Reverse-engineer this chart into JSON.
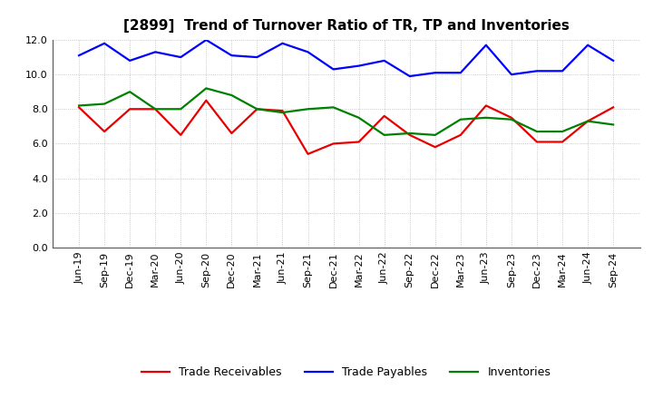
{
  "title": "[2899]  Trend of Turnover Ratio of TR, TP and Inventories",
  "x_labels": [
    "Jun-19",
    "Sep-19",
    "Dec-19",
    "Mar-20",
    "Jun-20",
    "Sep-20",
    "Dec-20",
    "Mar-21",
    "Jun-21",
    "Sep-21",
    "Dec-21",
    "Mar-22",
    "Jun-22",
    "Sep-22",
    "Dec-22",
    "Mar-23",
    "Jun-23",
    "Sep-23",
    "Dec-23",
    "Mar-24",
    "Jun-24",
    "Sep-24"
  ],
  "trade_receivables": [
    8.1,
    6.7,
    8.0,
    8.0,
    6.5,
    8.5,
    6.6,
    8.0,
    7.9,
    5.4,
    6.0,
    6.1,
    7.6,
    6.5,
    5.8,
    6.5,
    8.2,
    7.5,
    6.1,
    6.1,
    7.3,
    8.1
  ],
  "trade_payables": [
    11.1,
    11.8,
    10.8,
    11.3,
    11.0,
    12.0,
    11.1,
    11.0,
    11.8,
    11.3,
    10.3,
    10.5,
    10.8,
    9.9,
    10.1,
    10.1,
    11.7,
    10.0,
    10.2,
    10.2,
    11.7,
    10.8
  ],
  "inventories": [
    8.2,
    8.3,
    9.0,
    8.0,
    8.0,
    9.2,
    8.8,
    8.0,
    7.8,
    8.0,
    8.1,
    7.5,
    6.5,
    6.6,
    6.5,
    7.4,
    7.5,
    7.4,
    6.7,
    6.7,
    7.3,
    7.1
  ],
  "color_tr": "#e80000",
  "color_tp": "#0000ff",
  "color_inv": "#008000",
  "ylim": [
    0.0,
    12.0
  ],
  "yticks": [
    0.0,
    2.0,
    4.0,
    6.0,
    8.0,
    10.0,
    12.0
  ],
  "legend_tr": "Trade Receivables",
  "legend_tp": "Trade Payables",
  "legend_inv": "Inventories",
  "bg_color": "#ffffff",
  "plot_bg": "#ffffff",
  "grid_color": "#aaaaaa",
  "line_width": 1.6,
  "title_fontsize": 11,
  "tick_fontsize": 8,
  "legend_fontsize": 9
}
